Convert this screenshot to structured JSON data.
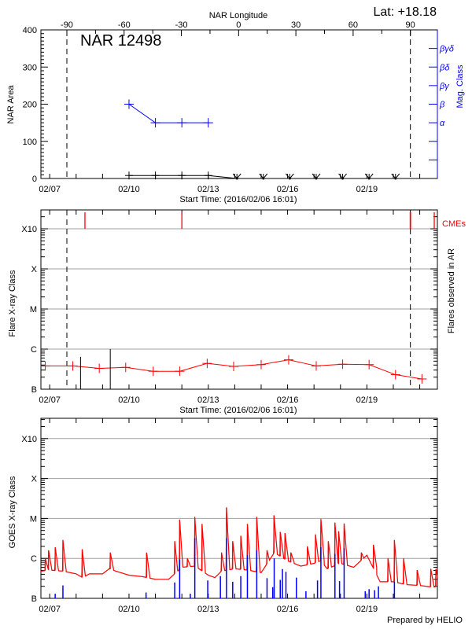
{
  "header": {
    "lat_label": "Lat: +18.18",
    "region_label": "NAR 12498",
    "prepared_by": "Prepared by HELIO"
  },
  "colors": {
    "axis": "#000000",
    "grid": "#a0a0a0",
    "flare": "#ff0000",
    "mag_class": "#0000ff",
    "goes_long": "#ff0000",
    "goes_short": "#0000ff",
    "cme": "#ff0000"
  },
  "chart_data": [
    {
      "type": "line",
      "title": "NAR 12498",
      "xlabel": "Start Time: (2016/02/06 16:01)",
      "xlim": [
        "02/06 16:01",
        "02/21 16:01"
      ],
      "x_tick_labels": [
        "02/07",
        "02/10",
        "02/13",
        "02/16",
        "02/19"
      ],
      "top_axis": {
        "title": "NAR Longitude",
        "tick_labels": [
          "-90",
          "-60",
          "-30",
          "0",
          "30",
          "60",
          "90"
        ],
        "limb_crossings": [
          "02/07 15:35",
          "02/20 15:30"
        ]
      },
      "ylabel": "NAR Area",
      "ylim": [
        0,
        400
      ],
      "y_tick_labels": [
        "0",
        "100",
        "200",
        "300",
        "400"
      ],
      "y2label": "Mag. Class",
      "y2_tick_labels": [
        "α",
        "β",
        "βγ",
        "βδ",
        "βγδ"
      ],
      "y2_tick_values": [
        150,
        200,
        250,
        300,
        350
      ],
      "area": {
        "x": [
          "02/10 00:00",
          "02/11 00:00",
          "02/12 00:00",
          "02/13 00:00",
          "02/14 02:00",
          "02/15 02:00",
          "02/16 02:00",
          "02/17 02:00",
          "02/18 02:00",
          "02/19 02:00",
          "02/20 02:00"
        ],
        "y": [
          8,
          8,
          8,
          8,
          0,
          0,
          0,
          0,
          0,
          0,
          0
        ]
      },
      "mag_class": {
        "x": [
          "02/10 00:00",
          "02/11 00:00",
          "02/12 00:00",
          "02/13 00:00"
        ],
        "values": [
          "β",
          "α",
          "α",
          "α"
        ]
      }
    },
    {
      "type": "line",
      "xlabel": "Start Time: (2016/02/06 16:01)",
      "xlim": [
        "02/06 16:01",
        "02/21 16:01"
      ],
      "x_tick_labels": [
        "02/07",
        "02/10",
        "02/13",
        "02/16",
        "02/19"
      ],
      "ylabel": "Flare X-ray Class",
      "yscale": "log",
      "y_tick_labels": [
        "B",
        "C",
        "M",
        "X",
        "X10"
      ],
      "y2label": "Flares observed in AR",
      "cme_label": "CMEs",
      "grid": true,
      "flare_class": {
        "x": [
          "02/06 20:00",
          "02/07 21:00",
          "02/08 21:00",
          "02/09 21:00",
          "02/10 22:00",
          "02/11 22:00",
          "02/12 23:00",
          "02/13 23:00",
          "02/15 00:00",
          "02/16 01:00",
          "02/17 02:00",
          "02/18 02:00",
          "02/19 02:00",
          "02/20 02:00",
          "02/21 02:00"
        ],
        "values": [
          "B3.8",
          "B3.8",
          "B3.3",
          "B3.5",
          "B2.8",
          "B2.8",
          "B4.4",
          "B3.7",
          "B4.1",
          "B5.4",
          "B3.8",
          "B4.2",
          "B4.1",
          "B2.3",
          "B1.8"
        ]
      },
      "ar_flares": [
        {
          "time": "02/08 04:00",
          "class": "B6.4"
        },
        {
          "time": "02/09 07:00",
          "class": "C1.0"
        }
      ],
      "cmes": [
        "02/08 08:00",
        "02/12 00:00",
        "02/20 15:20",
        "02/20 15:40",
        "02/21 13:10"
      ],
      "limb_crossings": [
        "02/07 15:35",
        "02/20 15:30"
      ]
    },
    {
      "type": "line",
      "x_tick_labels": [
        "02/07",
        "02/10",
        "02/13",
        "02/16",
        "02/19"
      ],
      "xlim": [
        "02/06 16:01",
        "02/21 16:01"
      ],
      "ylabel": "GOES X-ray Class",
      "yscale": "log",
      "y_tick_labels": [
        "B",
        "C",
        "M",
        "X",
        "X10"
      ],
      "grid": true,
      "long_channel_background": [
        [
          "02/06 16:01",
          "B4.8"
        ],
        [
          "02/07 00:00",
          "B5.1"
        ],
        [
          "02/07 12:00",
          "B4.8"
        ],
        [
          "02/08 00:00",
          "B4.1"
        ],
        [
          "02/08 06:00",
          "B3.3"
        ],
        [
          "02/08 12:00",
          "B4.1"
        ],
        [
          "02/09 00:00",
          "B4.1"
        ],
        [
          "02/09 06:00",
          "B5.5"
        ],
        [
          "02/09 12:00",
          "B4.8"
        ],
        [
          "02/10 00:00",
          "B3.8"
        ],
        [
          "02/10 12:00",
          "B3.5"
        ],
        [
          "02/11 00:00",
          "B3.0"
        ],
        [
          "02/11 12:00",
          "B3.0"
        ],
        [
          "02/12 00:00",
          "B6.0"
        ],
        [
          "02/12 12:00",
          "B6.4"
        ],
        [
          "02/13 00:00",
          "B3.8"
        ],
        [
          "02/13 06:00",
          "B3.3"
        ],
        [
          "02/13 12:00",
          "B4.8"
        ],
        [
          "02/14 00:00",
          "B5.5"
        ],
        [
          "02/14 12:00",
          "B5.1"
        ],
        [
          "02/15 00:00",
          "B4.4"
        ],
        [
          "02/15 12:00",
          "C1.4"
        ],
        [
          "02/16 00:00",
          "B8.7"
        ],
        [
          "02/16 12:00",
          "B6.4"
        ],
        [
          "02/17 00:00",
          "B7.5"
        ],
        [
          "02/17 06:00",
          "B8.7"
        ],
        [
          "02/17 12:00",
          "B5.5"
        ],
        [
          "02/18 00:00",
          "B7.5"
        ],
        [
          "02/18 12:00",
          "B6.0"
        ],
        [
          "02/19 00:00",
          "C1.2"
        ],
        [
          "02/19 12:00",
          "B2.6"
        ],
        [
          "02/20 00:00",
          "B2.6"
        ],
        [
          "02/20 12:00",
          "B2.2"
        ],
        [
          "02/21 00:00",
          "B2.1"
        ],
        [
          "02/21 12:00",
          "B1.9"
        ],
        [
          "02/21 16:01",
          "B2.0"
        ]
      ],
      "long_channel_peaks": [
        [
          "02/06 20:00",
          "C1.0"
        ],
        [
          "02/06 23:00",
          "C1.6"
        ],
        [
          "02/07 05:00",
          "C1.9"
        ],
        [
          "02/07 12:00",
          "C2.9"
        ],
        [
          "02/08 05:30",
          "C1.7"
        ],
        [
          "02/09 07:00",
          "C1.4"
        ],
        [
          "02/10 16:00",
          "C1.4"
        ],
        [
          "02/11 17:30",
          "C2.7"
        ],
        [
          "02/11 22:00",
          "C9.4"
        ],
        [
          "02/12 05:00",
          "C1.0"
        ],
        [
          "02/12 11:45",
          "M1.1"
        ],
        [
          "02/12 18:20",
          "C7.3"
        ],
        [
          "02/13 12:00",
          "C1.4"
        ],
        [
          "02/13 16:30",
          "M1.9"
        ],
        [
          "02/13 22:10",
          "C2.7"
        ],
        [
          "02/14 05:30",
          "C3.7"
        ],
        [
          "02/14 11:30",
          "C7.3"
        ],
        [
          "02/14 20:00",
          "M1.1"
        ],
        [
          "02/15 05:20",
          "C1.6"
        ],
        [
          "02/15 11:40",
          "M1.2"
        ],
        [
          "02/15 17:20",
          "C4.6"
        ],
        [
          "02/15 21:40",
          "C4.3"
        ],
        [
          "02/16 03:00",
          "C1.4"
        ],
        [
          "02/16 18:00",
          "C2.0"
        ],
        [
          "02/17 01:20",
          "C4.0"
        ],
        [
          "02/17 06:15",
          "C9.8"
        ],
        [
          "02/17 13:00",
          "C2.7"
        ],
        [
          "02/17 19:00",
          "C7.9"
        ],
        [
          "02/17 22:20",
          "C4.8"
        ],
        [
          "02/18 03:20",
          "C7.5"
        ],
        [
          "02/18 19:00",
          "C1.4"
        ],
        [
          "02/19 06:00",
          "C2.2"
        ],
        [
          "02/19 19:10",
          "C1.0"
        ],
        [
          "02/20 01:00",
          "C2.9"
        ],
        [
          "02/20 09:20",
          "C1.0"
        ],
        [
          "02/20 21:40",
          "B5.1"
        ],
        [
          "02/21 10:00",
          "B5.5"
        ],
        [
          "02/21 14:40",
          "B5.5"
        ]
      ],
      "short_channel_peaks": [
        [
          "02/07 05:00",
          "B1.3"
        ],
        [
          "02/07 12:00",
          "B2.1"
        ],
        [
          "02/10 15:30",
          "B1.4"
        ],
        [
          "02/11 17:30",
          "B2.5"
        ],
        [
          "02/11 22:00",
          "B9.4"
        ],
        [
          "02/12 07:40",
          "B1.3"
        ],
        [
          "02/12 11:45",
          "C3.2"
        ],
        [
          "02/12 23:30",
          "B2.8"
        ],
        [
          "02/13 11:00",
          "B3.6"
        ],
        [
          "02/13 16:30",
          "C3.2"
        ],
        [
          "02/13 22:10",
          "B2.6"
        ],
        [
          "02/14 05:30",
          "B3.6"
        ],
        [
          "02/14 11:30",
          "C1.2"
        ],
        [
          "02/14 20:00",
          "C1.6"
        ],
        [
          "02/15 05:20",
          "B3.2"
        ],
        [
          "02/15 10:30",
          "B1.9"
        ],
        [
          "02/15 11:50",
          "C1.0"
        ],
        [
          "02/15 17:20",
          "B2.9"
        ],
        [
          "02/15 19:20",
          "B5.4"
        ],
        [
          "02/15 22:30",
          "B4.6"
        ],
        [
          "02/16 08:00",
          "B3.3"
        ],
        [
          "02/16 16:40",
          "B1.5"
        ],
        [
          "02/17 03:10",
          "B2.8"
        ],
        [
          "02/17 06:15",
          "C1.9"
        ],
        [
          "02/17 19:00",
          "C1.3"
        ],
        [
          "02/17 23:10",
          "B2.7"
        ],
        [
          "02/18 03:20",
          "C1.8"
        ],
        [
          "02/18 22:30",
          "B1.5"
        ],
        [
          "02/19 02:00",
          "B1.7"
        ],
        [
          "02/19 07:00",
          "B1.6"
        ],
        [
          "02/19 10:30",
          "B2.0"
        ],
        [
          "02/20 01:00",
          "B2.6"
        ]
      ]
    }
  ]
}
